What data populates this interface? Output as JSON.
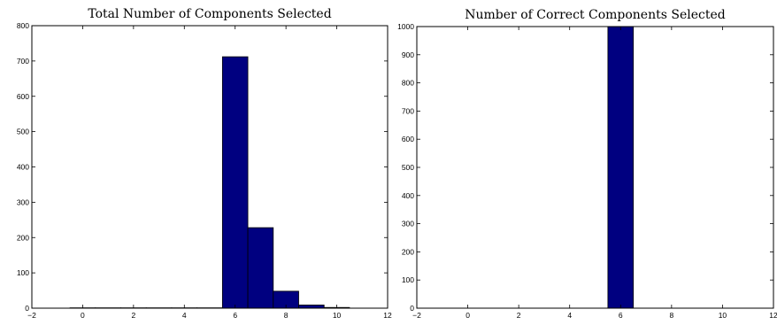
{
  "chart_data": [
    {
      "type": "bar",
      "title": "Total Number of Components Selected",
      "xlabel": "",
      "ylabel": "",
      "xlim": [
        -2,
        12
      ],
      "ylim": [
        0,
        800
      ],
      "xticks": [
        "−2",
        "0",
        "2",
        "4",
        "6",
        "8",
        "10",
        "12"
      ],
      "yticks": [
        "0",
        "100",
        "200",
        "300",
        "400",
        "500",
        "600",
        "700",
        "800"
      ],
      "bar_width": 1,
      "x": [
        0,
        1,
        2,
        3,
        4,
        5,
        6,
        7,
        8,
        9,
        10
      ],
      "values": [
        1,
        1,
        1,
        1,
        1,
        1,
        712,
        228,
        48,
        9,
        2
      ],
      "color": "#000080"
    },
    {
      "type": "bar",
      "title": "Number of Correct Components Selected",
      "xlabel": "",
      "ylabel": "",
      "xlim": [
        -2,
        12
      ],
      "ylim": [
        0,
        1000
      ],
      "xticks": [
        "−2",
        "0",
        "2",
        "4",
        "6",
        "8",
        "10",
        "12"
      ],
      "yticks": [
        "0",
        "100",
        "200",
        "300",
        "400",
        "500",
        "600",
        "700",
        "800",
        "900",
        "1000"
      ],
      "bar_width": 1,
      "x": [
        6
      ],
      "values": [
        1000
      ],
      "color": "#000080"
    }
  ]
}
